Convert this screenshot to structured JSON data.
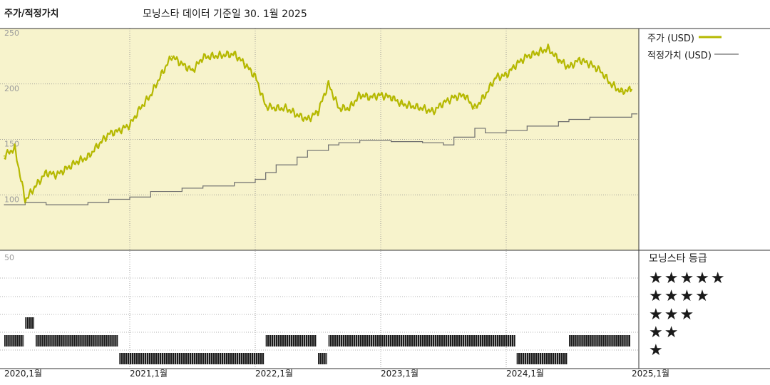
{
  "header": {
    "title": "주가/적정가치",
    "subtitle": "모닝스타 데이터 기준일 30. 1월 2025"
  },
  "legend": {
    "price_label": "주가 (USD)",
    "fair_value_label": "적정가치 (USD)",
    "price_color": "#b5b800",
    "fair_value_color": "#6e6e6e"
  },
  "rating": {
    "heading": "모닝스타 등급",
    "levels": [
      "★★★★★",
      "★★★★",
      "★★★",
      "★★",
      "★"
    ]
  },
  "chart_data": [
    {
      "type": "line",
      "y_ticks": [
        "250",
        "200",
        "150",
        "100"
      ],
      "ylim": [
        50,
        250
      ],
      "x_ticks": [
        "2020,1월",
        "2021,1월",
        "2022,1월",
        "2023,1월",
        "2024,1월",
        "2025,1월"
      ],
      "grid": true,
      "shaded_background": "#f7f3cc",
      "series": [
        {
          "name": "주가 (USD)",
          "color": "#b5b800",
          "points": [
            [
              "2020-01",
              135
            ],
            [
              "2020-02",
              142
            ],
            [
              "2020-03",
              95
            ],
            [
              "2020-04",
              108
            ],
            [
              "2020-05",
              120
            ],
            [
              "2020-06",
              118
            ],
            [
              "2020-07",
              124
            ],
            [
              "2020-08",
              130
            ],
            [
              "2020-09",
              134
            ],
            [
              "2020-10",
              145
            ],
            [
              "2020-11",
              155
            ],
            [
              "2020-12",
              158
            ],
            [
              "2021-01",
              163
            ],
            [
              "2021-02",
              178
            ],
            [
              "2021-03",
              190
            ],
            [
              "2021-04",
              208
            ],
            [
              "2021-05",
              225
            ],
            [
              "2021-06",
              218
            ],
            [
              "2021-07",
              212
            ],
            [
              "2021-08",
              224
            ],
            [
              "2021-09",
              225
            ],
            [
              "2021-10",
              226
            ],
            [
              "2021-11",
              227
            ],
            [
              "2021-12",
              218
            ],
            [
              "2022-01",
              207
            ],
            [
              "2022-02",
              180
            ],
            [
              "2022-03",
              178
            ],
            [
              "2022-04",
              178
            ],
            [
              "2022-05",
              172
            ],
            [
              "2022-06",
              168
            ],
            [
              "2022-07",
              175
            ],
            [
              "2022-08",
              200
            ],
            [
              "2022-09",
              178
            ],
            [
              "2022-10",
              178
            ],
            [
              "2022-11",
              190
            ],
            [
              "2022-12",
              188
            ],
            [
              "2023-01",
              190
            ],
            [
              "2023-02",
              188
            ],
            [
              "2023-03",
              182
            ],
            [
              "2023-04",
              180
            ],
            [
              "2023-05",
              178
            ],
            [
              "2023-06",
              175
            ],
            [
              "2023-07",
              183
            ],
            [
              "2023-08",
              188
            ],
            [
              "2023-09",
              190
            ],
            [
              "2023-10",
              178
            ],
            [
              "2023-11",
              190
            ],
            [
              "2023-12",
              206
            ],
            [
              "2024-01",
              208
            ],
            [
              "2024-02",
              218
            ],
            [
              "2024-03",
              225
            ],
            [
              "2024-04",
              228
            ],
            [
              "2024-05",
              232
            ],
            [
              "2024-06",
              222
            ],
            [
              "2024-07",
              215
            ],
            [
              "2024-08",
              222
            ],
            [
              "2024-09",
              218
            ],
            [
              "2024-10",
              212
            ],
            [
              "2024-11",
              200
            ],
            [
              "2024-12",
              193
            ],
            [
              "2025-01",
              195
            ]
          ]
        },
        {
          "name": "적정가치 (USD)",
          "color": "#6e6e6e",
          "points": [
            [
              "2020-01",
              91
            ],
            [
              "2020-03",
              93
            ],
            [
              "2020-05",
              91
            ],
            [
              "2020-09",
              93
            ],
            [
              "2020-11",
              96
            ],
            [
              "2021-01",
              98
            ],
            [
              "2021-03",
              103
            ],
            [
              "2021-06",
              106
            ],
            [
              "2021-08",
              108
            ],
            [
              "2021-11",
              111
            ],
            [
              "2022-01",
              114
            ],
            [
              "2022-02",
              120
            ],
            [
              "2022-03",
              127
            ],
            [
              "2022-05",
              134
            ],
            [
              "2022-06",
              140
            ],
            [
              "2022-08",
              145
            ],
            [
              "2022-09",
              147
            ],
            [
              "2022-11",
              149
            ],
            [
              "2023-02",
              148
            ],
            [
              "2023-05",
              147
            ],
            [
              "2023-07",
              145
            ],
            [
              "2023-08",
              152
            ],
            [
              "2023-10",
              160
            ],
            [
              "2023-11",
              156
            ],
            [
              "2024-01",
              158
            ],
            [
              "2024-03",
              162
            ],
            [
              "2024-06",
              166
            ],
            [
              "2024-07",
              168
            ],
            [
              "2024-09",
              170
            ],
            [
              "2025-01",
              173
            ]
          ]
        }
      ]
    },
    {
      "type": "bar",
      "y_ticks": [
        "50"
      ],
      "levels": [
        "5",
        "4",
        "3",
        "2",
        "1"
      ],
      "ratings": [
        {
          "from": "2020-01",
          "to": "2020-03",
          "stars": 2
        },
        {
          "from": "2020-03",
          "to": "2020-04",
          "stars": 3
        },
        {
          "from": "2020-04",
          "to": "2020-12",
          "stars": 2
        },
        {
          "from": "2020-12",
          "to": "2022-02",
          "stars": 1
        },
        {
          "from": "2022-02",
          "to": "2022-07",
          "stars": 2
        },
        {
          "from": "2022-07",
          "to": "2022-08",
          "stars": 1
        },
        {
          "from": "2022-08",
          "to": "2024-02",
          "stars": 2
        },
        {
          "from": "2024-02",
          "to": "2024-07",
          "stars": 1
        },
        {
          "from": "2024-07",
          "to": "2025-01",
          "stars": 2
        }
      ]
    }
  ]
}
